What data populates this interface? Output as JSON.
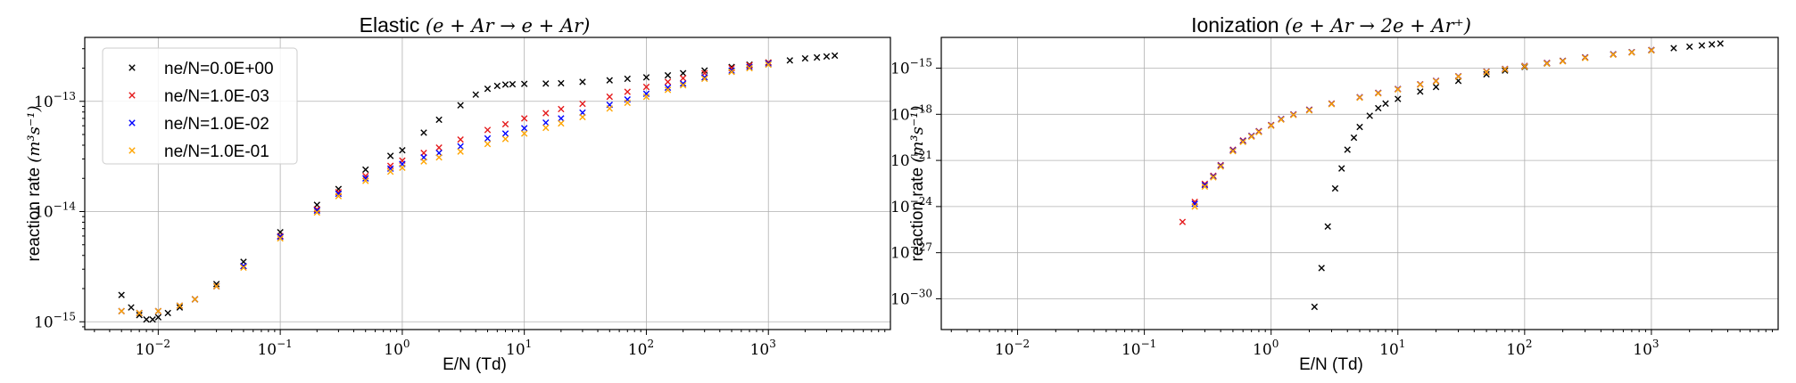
{
  "chart_data": [
    {
      "type": "scatter",
      "title": "Elastic",
      "title_math": "(e + Ar → e + Ar)",
      "xlabel": "E/N (Td)",
      "ylabel": "reaction rate",
      "ylabel_unit": "(m³s⁻¹)",
      "xscale": "log",
      "yscale": "log",
      "xlim": [
        0.0025,
        10000
      ],
      "ylim": [
        8.5e-16,
        3.8e-13
      ],
      "xticks": [
        0.01,
        0.1,
        1,
        10,
        100,
        1000
      ],
      "xtick_labels": [
        [
          "10",
          "−2"
        ],
        [
          "10",
          "−1"
        ],
        [
          "10",
          "0"
        ],
        [
          "10",
          "1"
        ],
        [
          "10",
          "2"
        ],
        [
          "10",
          "3"
        ]
      ],
      "yticks": [
        1e-15,
        1e-14,
        1e-13
      ],
      "ytick_labels": [
        [
          "10",
          "−15"
        ],
        [
          "10",
          "−14"
        ],
        [
          "10",
          "−13"
        ]
      ],
      "grid": true,
      "legend_position": "top-left",
      "marker": "x",
      "series": [
        {
          "name": "ne/N=0.0E+00",
          "color": "#000000",
          "x": [
            0.005,
            0.006,
            0.007,
            0.008,
            0.009,
            0.01,
            0.012,
            0.015,
            0.02,
            0.03,
            0.05,
            0.1,
            0.2,
            0.3,
            0.5,
            0.8,
            1,
            1.5,
            2,
            3,
            4,
            5,
            6,
            7,
            8,
            10,
            15,
            20,
            30,
            50,
            70,
            100,
            150,
            200,
            300,
            500,
            700,
            1000,
            1500,
            2000,
            2500,
            3000,
            3500
          ],
          "y": [
            1.75e-15,
            1.35e-15,
            1.15e-15,
            1.05e-15,
            1.05e-15,
            1.1e-15,
            1.2e-15,
            1.35e-15,
            1.6e-15,
            2.2e-15,
            3.5e-15,
            6.5e-15,
            1.15e-14,
            1.6e-14,
            2.4e-14,
            3.2e-14,
            3.6e-14,
            5.2e-14,
            6.8e-14,
            9.2e-14,
            1.15e-13,
            1.3e-13,
            1.38e-13,
            1.42e-13,
            1.43e-13,
            1.44e-13,
            1.45e-13,
            1.46e-13,
            1.5e-13,
            1.55e-13,
            1.6e-13,
            1.65e-13,
            1.72e-13,
            1.8e-13,
            1.9e-13,
            2.05e-13,
            2.15e-13,
            2.25e-13,
            2.35e-13,
            2.45e-13,
            2.5e-13,
            2.55e-13,
            2.6e-13
          ]
        },
        {
          "name": "ne/N=1.0E-03",
          "color": "#e41a1c",
          "x": [
            0.005,
            0.007,
            0.01,
            0.015,
            0.02,
            0.03,
            0.05,
            0.1,
            0.2,
            0.3,
            0.5,
            0.8,
            1,
            1.5,
            2,
            3,
            5,
            7,
            10,
            15,
            20,
            30,
            50,
            70,
            100,
            150,
            200,
            300,
            500,
            700,
            1000
          ],
          "y": [
            1.25e-15,
            1.2e-15,
            1.25e-15,
            1.4e-15,
            1.6e-15,
            2.1e-15,
            3.2e-15,
            6e-15,
            1.05e-14,
            1.5e-14,
            2.1e-14,
            2.6e-14,
            2.9e-14,
            3.4e-14,
            3.8e-14,
            4.5e-14,
            5.5e-14,
            6.2e-14,
            7e-14,
            7.8e-14,
            8.5e-14,
            9.5e-14,
            1.1e-13,
            1.22e-13,
            1.35e-13,
            1.5e-13,
            1.62e-13,
            1.8e-13,
            2e-13,
            2.12e-13,
            2.25e-13
          ]
        },
        {
          "name": "ne/N=1.0E-02",
          "color": "#0000ff",
          "x": [
            0.005,
            0.007,
            0.01,
            0.015,
            0.02,
            0.03,
            0.05,
            0.1,
            0.2,
            0.3,
            0.5,
            0.8,
            1,
            1.5,
            2,
            3,
            5,
            7,
            10,
            15,
            20,
            30,
            50,
            70,
            100,
            150,
            200,
            300,
            500,
            700,
            1000
          ],
          "y": [
            1.25e-15,
            1.2e-15,
            1.25e-15,
            1.4e-15,
            1.6e-15,
            2.1e-15,
            3.2e-15,
            5.9e-15,
            1.02e-14,
            1.45e-14,
            2e-14,
            2.45e-14,
            2.7e-14,
            3.1e-14,
            3.4e-14,
            3.9e-14,
            4.6e-14,
            5.1e-14,
            5.7e-14,
            6.4e-14,
            7e-14,
            7.9e-14,
            9.3e-14,
            1.04e-13,
            1.17e-13,
            1.33e-13,
            1.45e-13,
            1.65e-13,
            1.9e-13,
            2.05e-13,
            2.2e-13
          ]
        },
        {
          "name": "ne/N=1.0E-01",
          "color": "#ffa500",
          "x": [
            0.005,
            0.007,
            0.01,
            0.015,
            0.02,
            0.03,
            0.05,
            0.1,
            0.2,
            0.3,
            0.5,
            0.8,
            1,
            1.5,
            2,
            3,
            5,
            7,
            10,
            15,
            20,
            30,
            50,
            70,
            100,
            150,
            200,
            300,
            500,
            700,
            1000
          ],
          "y": [
            1.25e-15,
            1.2e-15,
            1.25e-15,
            1.4e-15,
            1.6e-15,
            2.1e-15,
            3.1e-15,
            5.7e-15,
            9.8e-15,
            1.38e-14,
            1.9e-14,
            2.3e-14,
            2.5e-14,
            2.85e-14,
            3.1e-14,
            3.5e-14,
            4.1e-14,
            4.55e-14,
            5.1e-14,
            5.75e-14,
            6.3e-14,
            7.2e-14,
            8.6e-14,
            9.7e-14,
            1.1e-13,
            1.27e-13,
            1.4e-13,
            1.6e-13,
            1.85e-13,
            2e-13,
            2.15e-13
          ]
        }
      ]
    },
    {
      "type": "scatter",
      "title": "Ionization",
      "title_math": "(e + Ar → 2e + Ar⁺)",
      "xlabel": "E/N (Td)",
      "ylabel": "reaction rate",
      "ylabel_unit": "(m³s⁻¹)",
      "xscale": "log",
      "yscale": "log",
      "xlim": [
        0.0025,
        10000
      ],
      "ylim": [
        1e-32,
        1e-13
      ],
      "xticks": [
        0.01,
        0.1,
        1,
        10,
        100,
        1000
      ],
      "xtick_labels": [
        [
          "10",
          "−2"
        ],
        [
          "10",
          "−1"
        ],
        [
          "10",
          "0"
        ],
        [
          "10",
          "1"
        ],
        [
          "10",
          "2"
        ],
        [
          "10",
          "3"
        ]
      ],
      "yticks": [
        1e-30,
        1e-27,
        1e-24,
        1e-21,
        1e-18,
        1e-15
      ],
      "ytick_labels": [
        [
          "10",
          "−30"
        ],
        [
          "10",
          "−27"
        ],
        [
          "10",
          "−24"
        ],
        [
          "10",
          "−21"
        ],
        [
          "10",
          "−18"
        ],
        [
          "10",
          "−15"
        ]
      ],
      "grid": true,
      "marker": "x",
      "series": [
        {
          "color": "#000000",
          "x": [
            2.2,
            2.5,
            2.8,
            3.2,
            3.6,
            4,
            4.5,
            5,
            6,
            7,
            8,
            10,
            15,
            20,
            30,
            50,
            70,
            100,
            150,
            200,
            300,
            500,
            700,
            1000,
            1500,
            2000,
            2500,
            3000,
            3500
          ],
          "y": [
            3e-31,
            1e-28,
            5e-26,
            1.5e-23,
            3e-22,
            5e-21,
            3e-20,
            1.5e-19,
            8e-19,
            2.5e-18,
            5e-18,
            1e-17,
            3e-17,
            6e-17,
            1.5e-16,
            4e-16,
            7e-16,
            1.2e-15,
            2e-15,
            3e-15,
            5e-15,
            8e-15,
            1.1e-14,
            1.5e-14,
            2e-14,
            2.5e-14,
            3e-14,
            3.5e-14,
            4e-14
          ]
        },
        {
          "color": "#e41a1c",
          "x": [
            0.2,
            0.25,
            0.3,
            0.35,
            0.4,
            0.5,
            0.6,
            0.7,
            0.8,
            1,
            1.2,
            1.5,
            2,
            3,
            5,
            7,
            10,
            15,
            20,
            30,
            50,
            70,
            100,
            150,
            200,
            300,
            500,
            700,
            1000
          ],
          "y": [
            1e-25,
            2e-24,
            3e-23,
            1e-22,
            5e-22,
            5e-21,
            2e-20,
            4e-20,
            8e-20,
            2e-19,
            5e-19,
            1e-18,
            2e-18,
            5e-18,
            1.3e-17,
            2.5e-17,
            4.5e-17,
            9e-17,
            1.5e-16,
            3e-16,
            6e-16,
            9e-16,
            1.4e-15,
            2.2e-15,
            3e-15,
            5e-15,
            8e-15,
            1.1e-14,
            1.5e-14
          ]
        },
        {
          "color": "#0000ff",
          "x": [
            0.25,
            0.3,
            0.35,
            0.4,
            0.5,
            0.6,
            0.7,
            0.8,
            1,
            1.2,
            1.5,
            2,
            3,
            5,
            7,
            10,
            15,
            20,
            30,
            50,
            70,
            100,
            150,
            200,
            300,
            500,
            700,
            1000
          ],
          "y": [
            1.5e-24,
            2.5e-23,
            9e-23,
            4.5e-22,
            4.5e-21,
            1.8e-20,
            3.8e-20,
            7.5e-20,
            1.9e-19,
            4.8e-19,
            9.5e-19,
            1.9e-18,
            4.8e-18,
            1.25e-17,
            2.4e-17,
            4.3e-17,
            8.7e-17,
            1.45e-16,
            2.9e-16,
            5.8e-16,
            8.7e-16,
            1.35e-15,
            2.1e-15,
            2.9e-15,
            4.8e-15,
            7.8e-15,
            1.07e-14,
            1.45e-14
          ]
        },
        {
          "color": "#ffa500",
          "x": [
            0.25,
            0.3,
            0.35,
            0.4,
            0.5,
            0.6,
            0.7,
            0.8,
            1,
            1.2,
            1.5,
            2,
            3,
            5,
            7,
            10,
            15,
            20,
            30,
            50,
            70,
            100,
            150,
            200,
            300,
            500,
            700,
            1000
          ],
          "y": [
            1e-24,
            2e-23,
            8e-23,
            4e-22,
            4e-21,
            1.6e-20,
            3.5e-20,
            7e-20,
            1.8e-19,
            4.5e-19,
            9e-19,
            1.8e-18,
            4.6e-18,
            1.2e-17,
            2.3e-17,
            4.1e-17,
            8.4e-17,
            1.4e-16,
            2.8e-16,
            5.6e-16,
            8.4e-16,
            1.3e-15,
            2e-15,
            2.8e-15,
            4.6e-15,
            7.5e-15,
            1.04e-14,
            1.4e-14
          ]
        }
      ]
    }
  ]
}
